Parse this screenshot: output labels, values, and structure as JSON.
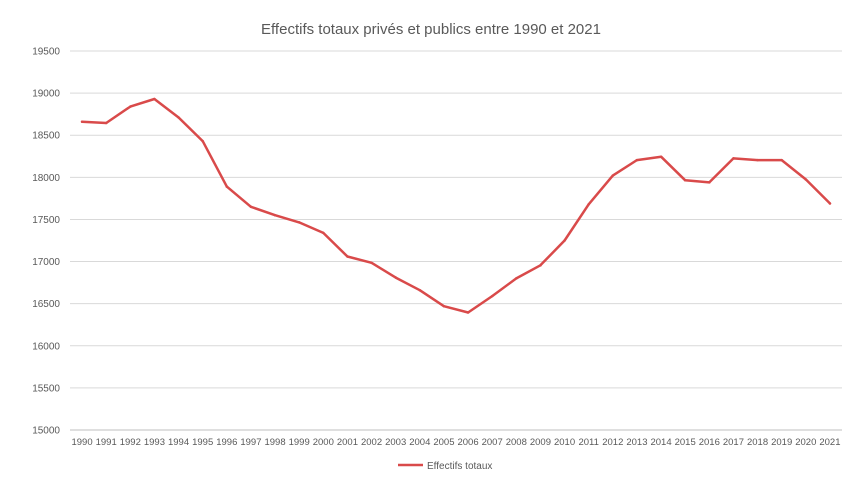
{
  "chart_data": {
    "type": "line",
    "title": "Effectifs totaux privés et publics entre 1990 et 2021",
    "xlabel": "",
    "ylabel": "",
    "categories": [
      "1990",
      "1991",
      "1992",
      "1993",
      "1994",
      "1995",
      "1996",
      "1997",
      "1998",
      "1999",
      "2000",
      "2001",
      "2002",
      "2003",
      "2004",
      "2005",
      "2006",
      "2007",
      "2008",
      "2009",
      "2010",
      "2011",
      "2012",
      "2013",
      "2014",
      "2015",
      "2016",
      "2017",
      "2018",
      "2019",
      "2020",
      "2021"
    ],
    "ylim": [
      15000,
      19500
    ],
    "yticks": [
      15000,
      15500,
      16000,
      16500,
      17000,
      17500,
      18000,
      18500,
      19000,
      19500
    ],
    "grid": true,
    "legend_position": "bottom",
    "series": [
      {
        "name": "Effectifs totaux",
        "color": "#d94a4a",
        "values": [
          18660,
          18645,
          18840,
          18930,
          18710,
          18430,
          17890,
          17650,
          17550,
          17465,
          17340,
          17060,
          16985,
          16810,
          16660,
          16470,
          16395,
          16590,
          16800,
          16955,
          17250,
          17680,
          18020,
          18205,
          18245,
          17965,
          17940,
          18225,
          18205,
          18205,
          17975,
          17690
        ]
      }
    ]
  }
}
